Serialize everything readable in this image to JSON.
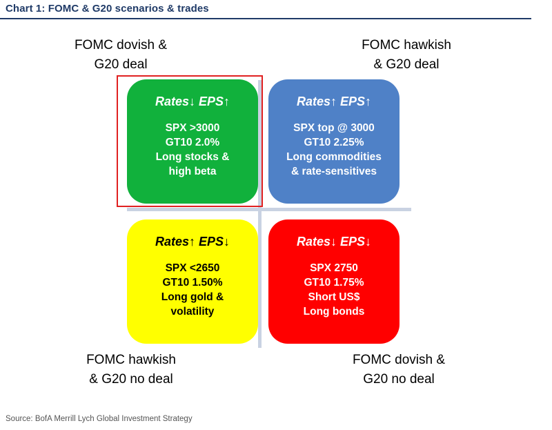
{
  "title": "Chart 1: FOMC & G20 scenarios & trades",
  "source": "Source: BofA Merrill Lych Global Investment Strategy",
  "quadrants": {
    "top_left": {
      "label": [
        "FOMC dovish &",
        "G20 deal"
      ],
      "heading": "Rates↓ EPS↑",
      "lines": [
        "SPX >3000",
        "GT10 2.0%",
        "Long stocks &",
        "high beta"
      ],
      "color": "#11b13c",
      "highlighted": true
    },
    "top_right": {
      "label": [
        "FOMC hawkish",
        "& G20 deal"
      ],
      "heading": "Rates↑ EPS↑",
      "lines": [
        "SPX top @ 3000",
        "GT10 2.25%",
        "Long commodities",
        "& rate-sensitives"
      ],
      "color": "#4f81c7"
    },
    "bottom_left": {
      "label": [
        "FOMC hawkish",
        "& G20 no deal"
      ],
      "heading": "Rates↑ EPS↓",
      "lines": [
        "SPX <2650",
        "GT10 1.50%",
        "Long gold &",
        "volatility"
      ],
      "color": "#ffff00"
    },
    "bottom_right": {
      "label": [
        "FOMC dovish &",
        "G20 no deal"
      ],
      "heading": "Rates↓ EPS↓",
      "lines": [
        "SPX 2750",
        "GT10 1.75%",
        "Short US$",
        "Long bonds"
      ],
      "color": "#ff0000"
    }
  }
}
